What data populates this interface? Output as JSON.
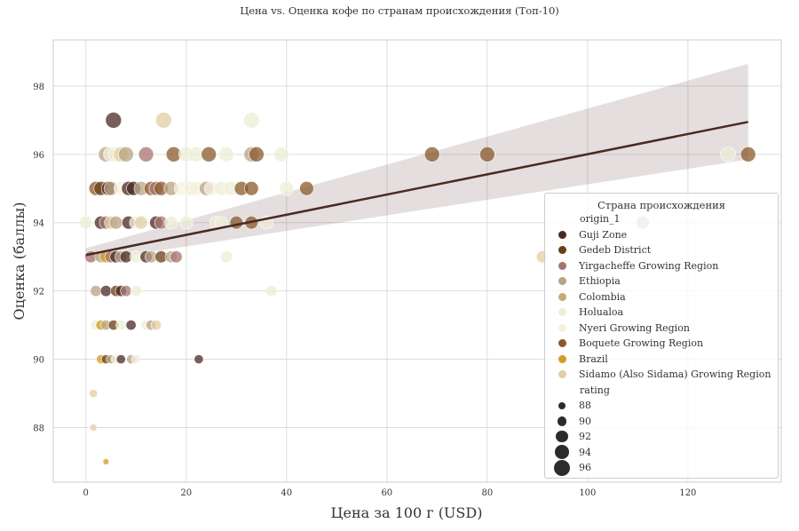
{
  "chart_data": {
    "type": "scatter",
    "title": "Цена vs. Оценка кофе по странам происхождения (Топ-10)",
    "xlabel": "Цена за 100 г (USD)",
    "ylabel": "Оценка (баллы)",
    "xlim": [
      -6.5,
      138.6
    ],
    "ylim": [
      86.4,
      99.35
    ],
    "xticks": [
      0,
      20,
      40,
      60,
      80,
      100,
      120
    ],
    "yticks": [
      88,
      90,
      92,
      94,
      96,
      98
    ],
    "grid": true,
    "legend_position": "lower-right",
    "legend": {
      "title": "Страна происхождения",
      "hue_label": "origin_1",
      "size_label": "rating",
      "size_values": [
        88,
        90,
        92,
        94,
        96
      ]
    },
    "categories": [
      {
        "name": "Guji Zone",
        "color": "#4a2a24"
      },
      {
        "name": "Gedeb District",
        "color": "#6b3d12"
      },
      {
        "name": "Yirgacheffe Growing Region",
        "color": "#a87470"
      },
      {
        "name": "Ethiopia",
        "color": "#b8a383"
      },
      {
        "name": "Colombia",
        "color": "#c9a87c"
      },
      {
        "name": "Holualoa",
        "color": "#eeeed6"
      },
      {
        "name": "Nyeri Growing Region",
        "color": "#f7f0de"
      },
      {
        "name": "Boquete Growing Region",
        "color": "#8a5a2b"
      },
      {
        "name": "Brazil",
        "color": "#d19d25"
      },
      {
        "name": "Sidamo (Also Sidama) Growing Region",
        "color": "#e2cfa3"
      }
    ],
    "points": [
      [
        5.5,
        97,
        0
      ],
      [
        15.5,
        97,
        9
      ],
      [
        33,
        97,
        5
      ],
      [
        4,
        96,
        3
      ],
      [
        5,
        96,
        6
      ],
      [
        6,
        96,
        5
      ],
      [
        7,
        96,
        9
      ],
      [
        8,
        96,
        3
      ],
      [
        12,
        96,
        2
      ],
      [
        17.5,
        96,
        7
      ],
      [
        20,
        96,
        5
      ],
      [
        22,
        96,
        5
      ],
      [
        24.5,
        96,
        7
      ],
      [
        28,
        96,
        5
      ],
      [
        33,
        96,
        3
      ],
      [
        34,
        96,
        7
      ],
      [
        39,
        96,
        5
      ],
      [
        69,
        96,
        7
      ],
      [
        80,
        96,
        7
      ],
      [
        128,
        96,
        5
      ],
      [
        132,
        96,
        7
      ],
      [
        2,
        95,
        7
      ],
      [
        3,
        95,
        1
      ],
      [
        4.5,
        95,
        0
      ],
      [
        5,
        95,
        3
      ],
      [
        7,
        95,
        6
      ],
      [
        8.5,
        95,
        0
      ],
      [
        9.5,
        95,
        0
      ],
      [
        11,
        95,
        3
      ],
      [
        13,
        95,
        7
      ],
      [
        14,
        95,
        2
      ],
      [
        15,
        95,
        7
      ],
      [
        17,
        95,
        3
      ],
      [
        19,
        95,
        6
      ],
      [
        21,
        95,
        5
      ],
      [
        22,
        95,
        6
      ],
      [
        24,
        95,
        3
      ],
      [
        25,
        95,
        6
      ],
      [
        27,
        95,
        5
      ],
      [
        29,
        95,
        5
      ],
      [
        31,
        95,
        7
      ],
      [
        33,
        95,
        7
      ],
      [
        40,
        95,
        5
      ],
      [
        44,
        95,
        7
      ],
      [
        0,
        94,
        5
      ],
      [
        3,
        94,
        0
      ],
      [
        4,
        94,
        2
      ],
      [
        5,
        94,
        9
      ],
      [
        6,
        94,
        3
      ],
      [
        8.5,
        94,
        0
      ],
      [
        10,
        94,
        6
      ],
      [
        11,
        94,
        9
      ],
      [
        14,
        94,
        0
      ],
      [
        15,
        94,
        2
      ],
      [
        17,
        94,
        5
      ],
      [
        20,
        94,
        5
      ],
      [
        26,
        94,
        5
      ],
      [
        27,
        94,
        5
      ],
      [
        30,
        94,
        7
      ],
      [
        33,
        94,
        7
      ],
      [
        36,
        94,
        5
      ],
      [
        111,
        94,
        3
      ],
      [
        1,
        93,
        2
      ],
      [
        3,
        93,
        3
      ],
      [
        4,
        93,
        8
      ],
      [
        5,
        93,
        2
      ],
      [
        6,
        93,
        0
      ],
      [
        7,
        93,
        3
      ],
      [
        8,
        93,
        0
      ],
      [
        10,
        93,
        5
      ],
      [
        12,
        93,
        0
      ],
      [
        13,
        93,
        3
      ],
      [
        15,
        93,
        1
      ],
      [
        17,
        93,
        3
      ],
      [
        18,
        93,
        2
      ],
      [
        28,
        93,
        5
      ],
      [
        91,
        93,
        9
      ],
      [
        2,
        92,
        3
      ],
      [
        4,
        92,
        0
      ],
      [
        6,
        92,
        1
      ],
      [
        7,
        92,
        0
      ],
      [
        8,
        92,
        2
      ],
      [
        10,
        92,
        5
      ],
      [
        37,
        92,
        5
      ],
      [
        2,
        91,
        5
      ],
      [
        3,
        91,
        8
      ],
      [
        4,
        91,
        3
      ],
      [
        5.5,
        91,
        1
      ],
      [
        7,
        91,
        5
      ],
      [
        9,
        91,
        0
      ],
      [
        12,
        91,
        5
      ],
      [
        13,
        91,
        3
      ],
      [
        14,
        91,
        9
      ],
      [
        3,
        90,
        8
      ],
      [
        4,
        90,
        1
      ],
      [
        5,
        90,
        3
      ],
      [
        6,
        90,
        5
      ],
      [
        7,
        90,
        0
      ],
      [
        9,
        90,
        3
      ],
      [
        10,
        90,
        5
      ],
      [
        22.5,
        90,
        0
      ],
      [
        1.5,
        89,
        9
      ],
      [
        1.5,
        88,
        9
      ],
      [
        4,
        87,
        8
      ]
    ],
    "regression": {
      "x": [
        0,
        132
      ],
      "y": [
        93.05,
        96.95
      ],
      "ci_low_end": 95.85,
      "ci_high_end": 98.65,
      "ci_low_start": 92.85,
      "ci_high_start": 93.25,
      "color": "#4a2a24"
    }
  }
}
